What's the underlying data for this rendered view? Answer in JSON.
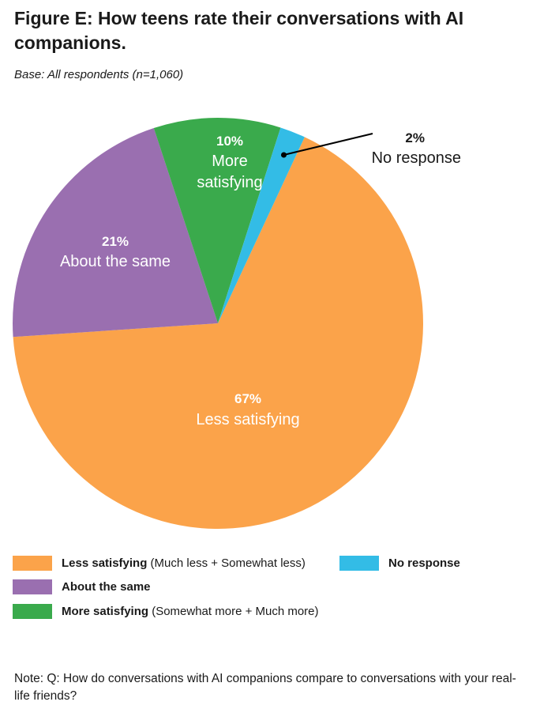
{
  "title": "Figure E: How teens rate their conversations with AI companions.",
  "base": "Base: All respondents (n=1,060)",
  "chart_data": {
    "type": "pie",
    "slices": [
      {
        "pct_label": "67%",
        "label": "Less satisfying",
        "value": 67,
        "color": "#FBA34A"
      },
      {
        "pct_label": "21%",
        "label": "About the same",
        "value": 21,
        "color": "#9A6FB0"
      },
      {
        "pct_label": "10%",
        "label": "More satisfying",
        "value": 10,
        "color": "#3AAA4C"
      },
      {
        "pct_label": "2%",
        "label": "No response",
        "value": 2,
        "color": "#33BCE6"
      }
    ],
    "legend": [
      {
        "name": "Less satisfying",
        "detail": " (Much less + Somewhat less)",
        "color": "#FBA34A"
      },
      {
        "name": "About the same",
        "detail": "",
        "color": "#9A6FB0"
      },
      {
        "name": "More satisfying",
        "detail": " (Somewhat more + Much more)",
        "color": "#3AAA4C"
      },
      {
        "name": "No response",
        "detail": "",
        "color": "#33BCE6"
      }
    ]
  },
  "note": "Note: Q: How do conversations with AI companions compare to conversations with your real-life friends?"
}
